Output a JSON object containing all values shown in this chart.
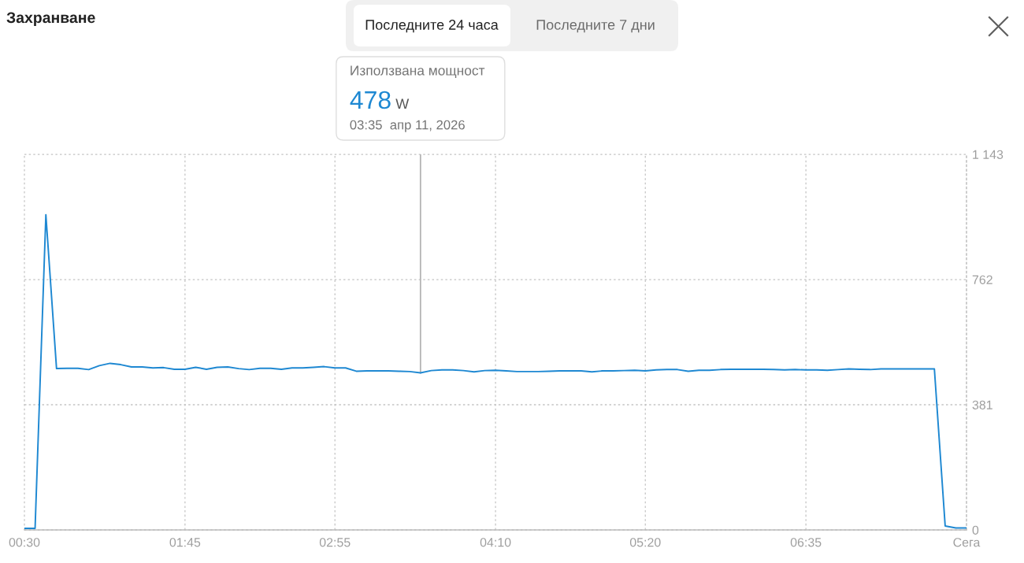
{
  "chart_data": {
    "type": "line",
    "title": "Захранване",
    "annotations": [
      "Последните 24 часа",
      "Последните 7 дни",
      "Използвана мощност",
      "478",
      "W",
      "03:35  апр 11, 2026"
    ],
    "x": [
      0.5,
      0.583,
      0.667,
      0.75,
      0.833,
      0.917,
      1,
      1.083,
      1.167,
      1.25,
      1.333,
      1.417,
      1.5,
      1.583,
      1.667,
      1.75,
      1.833,
      1.917,
      2,
      2.083,
      2.167,
      2.25,
      2.333,
      2.417,
      2.5,
      2.583,
      2.667,
      2.75,
      2.833,
      2.917,
      3,
      3.083,
      3.167,
      3.25,
      3.333,
      3.417,
      3.5,
      3.583,
      3.667,
      3.75,
      3.833,
      3.917,
      4,
      4.083,
      4.167,
      4.25,
      4.333,
      4.417,
      4.5,
      4.583,
      4.667,
      4.75,
      4.833,
      4.917,
      5,
      5.083,
      5.167,
      5.25,
      5.333,
      5.417,
      5.5,
      5.583,
      5.667,
      5.75,
      5.833,
      5.917,
      6,
      6.083,
      6.167,
      6.25,
      6.333,
      6.417,
      6.5,
      6.583,
      6.667,
      6.75,
      6.833,
      6.917,
      7,
      7.083,
      7.167,
      7.25,
      7.333,
      7.417,
      7.5,
      7.583,
      7.667,
      7.75,
      7.833
    ],
    "values": [
      5,
      5,
      959,
      491,
      492,
      492,
      488,
      500,
      507,
      503,
      496,
      496,
      493,
      494,
      489,
      489,
      495,
      489,
      495,
      496,
      491,
      488,
      492,
      492,
      489,
      493,
      493,
      495,
      497,
      493,
      493,
      483,
      484,
      484,
      484,
      483,
      482,
      478,
      485,
      487,
      487,
      485,
      481,
      485,
      486,
      484,
      482,
      482,
      482,
      483,
      484,
      484,
      484,
      481,
      484,
      484,
      485,
      486,
      484,
      487,
      488,
      488,
      483,
      486,
      486,
      488,
      489,
      489,
      489,
      489,
      488,
      487,
      488,
      487,
      487,
      486,
      488,
      490,
      489,
      488,
      490,
      490,
      490,
      490,
      490,
      490,
      12,
      6,
      6
    ],
    "color": "#1e88d2",
    "line_style": "solid",
    "xlim": [
      0.5,
      7.833
    ],
    "xticks": [
      {
        "value": 0.5,
        "label": "00:30"
      },
      {
        "value": 1.75,
        "label": "01:45"
      },
      {
        "value": 2.917,
        "label": "02:55"
      },
      {
        "value": 4.167,
        "label": "04:10"
      },
      {
        "value": 5.333,
        "label": "05:20"
      },
      {
        "value": 6.583,
        "label": "06:35"
      },
      {
        "value": 7.833,
        "label": "Сега"
      }
    ],
    "ylim": [
      0,
      1143
    ],
    "yticks": [
      0,
      381,
      762,
      {
        "value": 1143,
        "label": "1 143"
      }
    ],
    "ref_lines": [
      {
        "axis": "x",
        "value": 3.583,
        "color": "#b4b4b4"
      }
    ],
    "grid": true
  }
}
